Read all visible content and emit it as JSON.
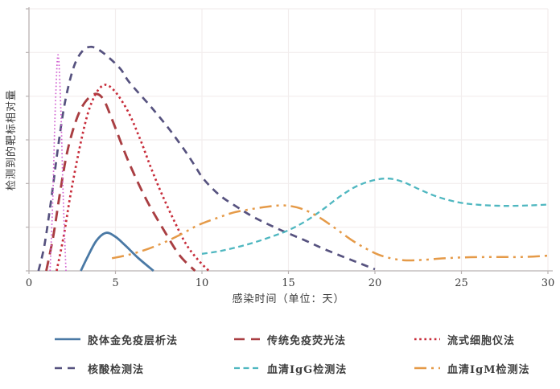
{
  "chart_data": {
    "type": "line",
    "title": "",
    "xlabel": "感染时间（单位：天）",
    "ylabel": "检测到的靶标相对量",
    "x_ticks": [
      "0",
      "5",
      "10",
      "15",
      "20",
      "25",
      "30"
    ],
    "x_tick_values": [
      0,
      5,
      10,
      15,
      20,
      25,
      30
    ],
    "xlim": [
      0,
      30
    ],
    "ylim": [
      0,
      1.0
    ],
    "y_ticks_labeled": false,
    "y_grid_divisions": 6,
    "grid": "on",
    "legend_position": "bottom",
    "background_color": "#ffffff",
    "grid_color": "#f2eded",
    "axis_color": "#b9b2b2",
    "text_color": "#3a3a3a",
    "series": [
      {
        "name": "胶体金免疫层析法",
        "color": "#4a79a5",
        "dash": "",
        "width": 2.8,
        "in_legend": true,
        "points": [
          [
            3.0,
            0
          ],
          [
            3.4,
            0.055
          ],
          [
            3.9,
            0.115
          ],
          [
            4.45,
            0.145
          ],
          [
            5.0,
            0.13
          ],
          [
            5.6,
            0.095
          ],
          [
            6.3,
            0.05
          ],
          [
            7.2,
            0
          ]
        ]
      },
      {
        "name": "传统免疫荧光法",
        "color": "#a93e42",
        "dash": "13 8",
        "width": 2.9,
        "in_legend": true,
        "points": [
          [
            1.0,
            0
          ],
          [
            1.4,
            0.13
          ],
          [
            1.8,
            0.3
          ],
          [
            2.2,
            0.45
          ],
          [
            2.7,
            0.57
          ],
          [
            3.2,
            0.64
          ],
          [
            3.8,
            0.675
          ],
          [
            4.3,
            0.655
          ],
          [
            4.85,
            0.57
          ],
          [
            5.8,
            0.41
          ],
          [
            6.8,
            0.27
          ],
          [
            7.8,
            0.155
          ],
          [
            8.7,
            0.06
          ],
          [
            9.6,
            0
          ]
        ]
      },
      {
        "name": "流式细胞仪法",
        "color": "#c72c3a",
        "dash": "2.6 3.6",
        "width": 2.7,
        "in_legend": true,
        "points": [
          [
            1.6,
            0
          ],
          [
            2.0,
            0.13
          ],
          [
            2.4,
            0.29
          ],
          [
            2.9,
            0.46
          ],
          [
            3.4,
            0.6
          ],
          [
            3.9,
            0.68
          ],
          [
            4.4,
            0.71
          ],
          [
            4.9,
            0.69
          ],
          [
            5.4,
            0.645
          ],
          [
            5.9,
            0.585
          ],
          [
            6.5,
            0.49
          ],
          [
            7.1,
            0.385
          ],
          [
            7.7,
            0.29
          ],
          [
            8.4,
            0.19
          ],
          [
            9.1,
            0.1
          ],
          [
            9.8,
            0.04
          ],
          [
            10.4,
            0
          ]
        ]
      },
      {
        "name": "核酸检测法",
        "color": "#56527f",
        "dash": "9 7",
        "width": 2.7,
        "in_legend": true,
        "points": [
          [
            0.55,
            0
          ],
          [
            0.9,
            0.1
          ],
          [
            1.3,
            0.28
          ],
          [
            1.7,
            0.48
          ],
          [
            2.1,
            0.65
          ],
          [
            2.6,
            0.78
          ],
          [
            3.1,
            0.84
          ],
          [
            3.55,
            0.855
          ],
          [
            4.0,
            0.845
          ],
          [
            4.6,
            0.815
          ],
          [
            5.3,
            0.77
          ],
          [
            5.8,
            0.72
          ],
          [
            7.0,
            0.63
          ],
          [
            8.0,
            0.55
          ],
          [
            9.0,
            0.46
          ],
          [
            9.6,
            0.4
          ],
          [
            10.1,
            0.35
          ],
          [
            11.0,
            0.29
          ],
          [
            12.0,
            0.245
          ],
          [
            13.0,
            0.205
          ],
          [
            14.4,
            0.16
          ],
          [
            16.0,
            0.115
          ],
          [
            17.0,
            0.085
          ],
          [
            18.0,
            0.058
          ],
          [
            19.0,
            0.032
          ],
          [
            20.0,
            0.006
          ]
        ]
      },
      {
        "name": "血清IgG检测法",
        "color": "#4fb7c0",
        "dash": "7 4.5",
        "width": 2.3,
        "in_legend": true,
        "points": [
          [
            10.0,
            0.065
          ],
          [
            11.0,
            0.075
          ],
          [
            12.0,
            0.09
          ],
          [
            13.0,
            0.108
          ],
          [
            14.0,
            0.13
          ],
          [
            15.0,
            0.155
          ],
          [
            16.0,
            0.19
          ],
          [
            17.0,
            0.235
          ],
          [
            18.0,
            0.285
          ],
          [
            19.0,
            0.325
          ],
          [
            20.0,
            0.347
          ],
          [
            20.8,
            0.352
          ],
          [
            21.6,
            0.34
          ],
          [
            22.6,
            0.31
          ],
          [
            23.6,
            0.283
          ],
          [
            24.8,
            0.262
          ],
          [
            26.0,
            0.252
          ],
          [
            27.5,
            0.248
          ],
          [
            29.0,
            0.25
          ],
          [
            30.0,
            0.253
          ]
        ]
      },
      {
        "name": "血清IgM检测法",
        "color": "#e59a48",
        "dash": "15 6 3 6 3 6",
        "width": 2.5,
        "in_legend": true,
        "points": [
          [
            4.8,
            0.048
          ],
          [
            5.8,
            0.062
          ],
          [
            6.8,
            0.082
          ],
          [
            7.8,
            0.108
          ],
          [
            8.8,
            0.14
          ],
          [
            9.8,
            0.175
          ],
          [
            10.8,
            0.2
          ],
          [
            11.8,
            0.222
          ],
          [
            12.8,
            0.235
          ],
          [
            13.8,
            0.245
          ],
          [
            14.7,
            0.25
          ],
          [
            15.5,
            0.242
          ],
          [
            16.2,
            0.225
          ],
          [
            17.0,
            0.195
          ],
          [
            17.8,
            0.158
          ],
          [
            18.6,
            0.12
          ],
          [
            19.4,
            0.088
          ],
          [
            20.2,
            0.062
          ],
          [
            21.0,
            0.047
          ],
          [
            21.8,
            0.04
          ],
          [
            22.8,
            0.042
          ],
          [
            24.0,
            0.048
          ],
          [
            25.5,
            0.052
          ],
          [
            27.0,
            0.053
          ],
          [
            28.5,
            0.053
          ],
          [
            30.0,
            0.058
          ]
        ]
      },
      {
        "name": "",
        "color": "#d05fd0",
        "dash": "1.6 2.8",
        "width": 1.7,
        "in_legend": false,
        "points": [
          [
            1.22,
            0
          ],
          [
            1.38,
            0.28
          ],
          [
            1.52,
            0.62
          ],
          [
            1.68,
            0.825
          ],
          [
            1.84,
            0.62
          ],
          [
            1.98,
            0.28
          ],
          [
            2.14,
            0
          ]
        ]
      }
    ]
  }
}
